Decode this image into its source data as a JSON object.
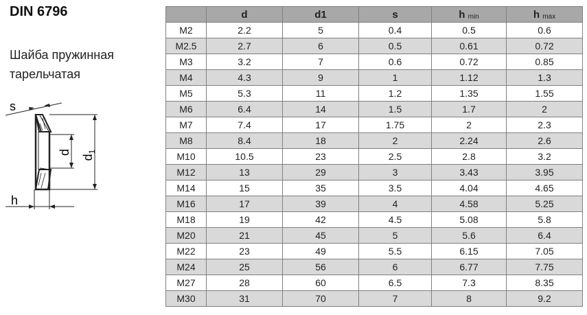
{
  "title": "DIN 6796",
  "subtitle": "Шайба пружинная тарельчатая",
  "diagram": {
    "labels": {
      "s": "s",
      "d": "d",
      "d1": "d",
      "d1_sub": "1",
      "h": "h"
    }
  },
  "table": {
    "headers": [
      {
        "main": "",
        "sub": ""
      },
      {
        "main": "d",
        "sub": ""
      },
      {
        "main": "d1",
        "sub": ""
      },
      {
        "main": "s",
        "sub": ""
      },
      {
        "main": "h",
        "sub": "min"
      },
      {
        "main": "h",
        "sub": "max"
      }
    ],
    "rows": [
      [
        "M2",
        "2.2",
        "5",
        "0.4",
        "0.5",
        "0.6"
      ],
      [
        "M2.5",
        "2.7",
        "6",
        "0.5",
        "0.61",
        "0.72"
      ],
      [
        "M3",
        "3.2",
        "7",
        "0.6",
        "0.72",
        "0.85"
      ],
      [
        "M4",
        "4.3",
        "9",
        "1",
        "1.12",
        "1.3"
      ],
      [
        "M5",
        "5.3",
        "11",
        "1.2",
        "1.35",
        "1.55"
      ],
      [
        "M6",
        "6.4",
        "14",
        "1.5",
        "1.7",
        "2"
      ],
      [
        "M7",
        "7.4",
        "17",
        "1.75",
        "2",
        "2.3"
      ],
      [
        "M8",
        "8.4",
        "18",
        "2",
        "2.24",
        "2.6"
      ],
      [
        "M10",
        "10.5",
        "23",
        "2.5",
        "2.8",
        "3.2"
      ],
      [
        "M12",
        "13",
        "29",
        "3",
        "3.43",
        "3.95"
      ],
      [
        "M14",
        "15",
        "35",
        "3.5",
        "4.04",
        "4.65"
      ],
      [
        "M16",
        "17",
        "39",
        "4",
        "4.58",
        "5.25"
      ],
      [
        "M18",
        "19",
        "42",
        "4.5",
        "5.08",
        "5.8"
      ],
      [
        "M20",
        "21",
        "45",
        "5",
        "5.6",
        "6.4"
      ],
      [
        "M22",
        "23",
        "49",
        "5.5",
        "6.15",
        "7.05"
      ],
      [
        "M24",
        "25",
        "56",
        "6",
        "6.77",
        "7.75"
      ],
      [
        "M27",
        "28",
        "60",
        "6.5",
        "7.3",
        "8.35"
      ],
      [
        "M30",
        "31",
        "70",
        "7",
        "8",
        "9.2"
      ]
    ]
  }
}
